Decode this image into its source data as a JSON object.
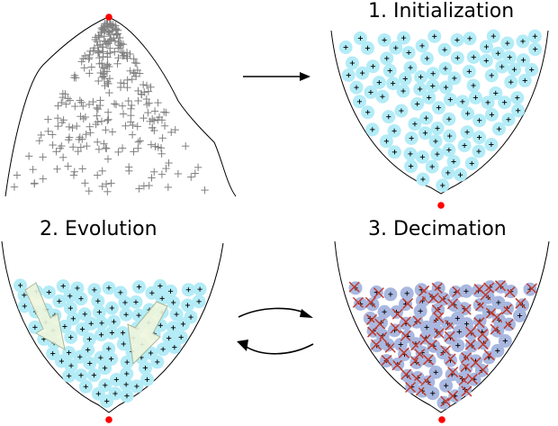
{
  "titles": {
    "initialization": "1. Initialization",
    "evolution": "2. Evolution",
    "decimation": "3. Decimation"
  },
  "colors": {
    "outline": "#000000",
    "sample_plus": "#808080",
    "particle_fill": "#b3ecf7",
    "particle_plus": "#000000",
    "extremum_dot": "#ff0000",
    "drift_arrow_fill": "#eef5dc",
    "drift_arrow_stroke": "#a8b79c",
    "decimation_cross": "#c0392b",
    "decimated_fill": "#a9b8e0",
    "process_arrow": "#000000"
  },
  "icons": {
    "sample": "plus-marker",
    "particle": "circled-plus-particle",
    "removed": "x-mark",
    "extremum": "red-dot"
  }
}
